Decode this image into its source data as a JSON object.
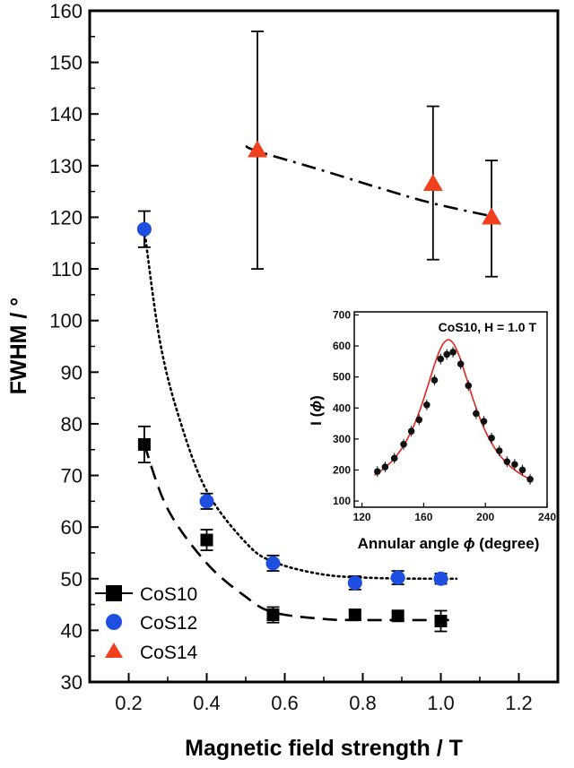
{
  "chart_data": [
    {
      "type": "scatter",
      "xlabel": "Magnetic field strength / T",
      "ylabel": "FWHM / °",
      "xlim": [
        0.1,
        1.3
      ],
      "ylim": [
        30,
        160
      ],
      "xticks": [
        0.2,
        0.4,
        0.6,
        0.8,
        1.0,
        1.2
      ],
      "yticks": [
        30,
        40,
        50,
        60,
        70,
        80,
        90,
        100,
        110,
        120,
        130,
        140,
        150,
        160
      ],
      "xtick_labels": [
        "0.2",
        "0.4",
        "0.6",
        "0.8",
        "1.0",
        "1.2"
      ],
      "ytick_labels": [
        "30",
        "40",
        "50",
        "60",
        "70",
        "80",
        "90",
        "100",
        "110",
        "120",
        "130",
        "140",
        "150",
        "160"
      ],
      "legend_position": "bottom-left",
      "series": [
        {
          "name": "CoS10",
          "marker": "square",
          "color": "#000000",
          "fit_style": "dashed",
          "x": [
            0.24,
            0.4,
            0.57,
            0.78,
            0.89,
            1.0
          ],
          "y": [
            76,
            57.5,
            43,
            43,
            42.8,
            41.8
          ],
          "err": [
            3.5,
            2,
            1.5,
            0.8,
            0.6,
            2
          ],
          "fit": [
            [
              0.24,
              76
            ],
            [
              0.3,
              63.5
            ],
            [
              0.4,
              53
            ],
            [
              0.5,
              46.5
            ],
            [
              0.57,
              43.5
            ],
            [
              0.7,
              42.2
            ],
            [
              0.8,
              42
            ],
            [
              1.04,
              42
            ]
          ]
        },
        {
          "name": "CoS12",
          "marker": "circle",
          "color": "#1f4fe0",
          "fit_style": "dotted",
          "x": [
            0.24,
            0.4,
            0.57,
            0.78,
            0.89,
            1.0
          ],
          "y": [
            117.7,
            65,
            53,
            49.2,
            50.2,
            50
          ],
          "err": [
            3.5,
            1.5,
            1.5,
            1.3,
            1.3,
            1
          ],
          "fit": [
            [
              0.24,
              117.7
            ],
            [
              0.28,
              96
            ],
            [
              0.33,
              81
            ],
            [
              0.4,
              67
            ],
            [
              0.5,
              57
            ],
            [
              0.57,
              53.3
            ],
            [
              0.7,
              50.8
            ],
            [
              0.85,
              50.1
            ],
            [
              1.04,
              50
            ]
          ]
        },
        {
          "name": "CoS14",
          "marker": "triangle",
          "color": "#f0401e",
          "fit_style": "dashdot",
          "x": [
            0.53,
            0.98,
            1.13
          ],
          "y": [
            133,
            126.5,
            120
          ],
          "err_low": [
            110,
            111.8,
            108.5
          ],
          "err_high": [
            156,
            141.5,
            131
          ],
          "fit": [
            [
              0.5,
              133.8
            ],
            [
              0.53,
              132.8
            ],
            [
              0.7,
              129
            ],
            [
              0.85,
              125.5
            ],
            [
              0.98,
              122.7
            ],
            [
              1.13,
              120.2
            ]
          ]
        }
      ]
    },
    {
      "type": "scatter",
      "annotation": "CoS10, H = 1.0 T",
      "xlabel_prefix": "Annular angle ",
      "xlabel_symbol": "ϕ",
      "xlabel_suffix": " (degree)",
      "ylabel_prefix": "I (",
      "ylabel_symbol": "ϕ",
      "ylabel_suffix": ")",
      "xlim": [
        115,
        240
      ],
      "ylim": [
        80,
        710
      ],
      "xticks": [
        120,
        160,
        200,
        240
      ],
      "yticks": [
        100,
        200,
        300,
        400,
        500,
        600,
        700
      ],
      "xtick_labels": [
        "120",
        "160",
        "200",
        "240"
      ],
      "ytick_labels": [
        "100",
        "200",
        "300",
        "400",
        "500",
        "600",
        "700"
      ],
      "points": {
        "color": "#111111",
        "x": [
          130,
          135,
          141,
          147,
          152,
          157,
          162,
          167,
          171,
          175,
          179,
          184,
          189,
          194,
          199,
          204,
          209,
          214,
          219,
          224,
          229
        ],
        "y": [
          195,
          210,
          238,
          283,
          325,
          362,
          410,
          490,
          558,
          573,
          580,
          542,
          472,
          382,
          357,
          303,
          262,
          227,
          218,
          200,
          170
        ]
      },
      "fit_color": "#e0251e",
      "fit": {
        "center": 176,
        "amplitude": 520,
        "hwhm": 21,
        "baseline": 100,
        "x_from": 128,
        "x_to": 230
      }
    }
  ]
}
